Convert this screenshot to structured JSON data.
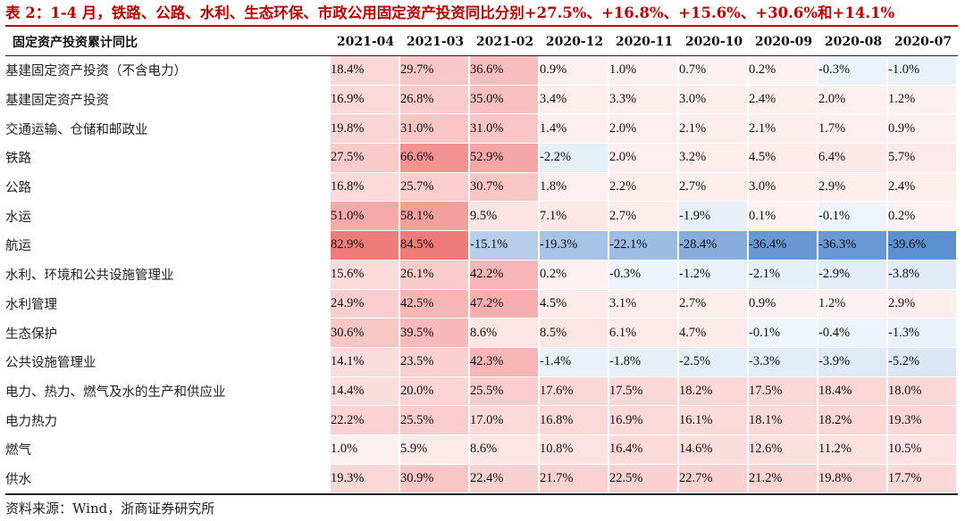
{
  "title": "表 2：1-4 月，铁路、公路、水利、生态环保、市政公用固定资产投资同比分别+27.5%、+16.8%、+15.6%、+30.6%和+14.1%",
  "table": {
    "header_label": "固定资产投资累计同比",
    "columns": [
      "2021-04",
      "2021-03",
      "2021-02",
      "2020-12",
      "2020-11",
      "2020-10",
      "2020-09",
      "2020-08",
      "2020-07"
    ],
    "rows": [
      {
        "label": "基建固定资产投资（不含电力）",
        "level": 0,
        "values": [
          "18.4%",
          "29.7%",
          "36.6%",
          "0.9%",
          "1.0%",
          "0.7%",
          "0.2%",
          "-0.3%",
          "-1.0%"
        ]
      },
      {
        "label": "基建固定资产投资",
        "level": 0,
        "values": [
          "16.9%",
          "26.8%",
          "35.0%",
          "3.4%",
          "3.3%",
          "3.0%",
          "2.4%",
          "2.0%",
          "1.2%"
        ]
      },
      {
        "label": "交通运输、仓储和邮政业",
        "level": 1,
        "values": [
          "19.8%",
          "31.0%",
          "31.0%",
          "1.4%",
          "2.0%",
          "2.1%",
          "2.1%",
          "1.7%",
          "0.9%"
        ]
      },
      {
        "label": "铁路",
        "level": 2,
        "values": [
          "27.5%",
          "66.6%",
          "52.9%",
          "-2.2%",
          "2.0%",
          "3.2%",
          "4.5%",
          "6.4%",
          "5.7%"
        ]
      },
      {
        "label": "公路",
        "level": 2,
        "values": [
          "16.8%",
          "25.7%",
          "30.7%",
          "1.8%",
          "2.2%",
          "2.7%",
          "3.0%",
          "2.9%",
          "2.4%"
        ]
      },
      {
        "label": "水运",
        "level": 2,
        "values": [
          "51.0%",
          "58.1%",
          "9.5%",
          "7.1%",
          "2.7%",
          "-1.9%",
          "0.1%",
          "-0.1%",
          "0.2%"
        ]
      },
      {
        "label": "航运",
        "level": 2,
        "values": [
          "82.9%",
          "84.5%",
          "-15.1%",
          "-19.3%",
          "-22.1%",
          "-28.4%",
          "-36.4%",
          "-36.3%",
          "-39.6%"
        ]
      },
      {
        "label": "水利、环境和公共设施管理业",
        "level": 1,
        "values": [
          "15.6%",
          "26.1%",
          "42.2%",
          "0.2%",
          "-0.3%",
          "-1.2%",
          "-2.1%",
          "-2.9%",
          "-3.8%"
        ]
      },
      {
        "label": "水利管理",
        "level": 2,
        "values": [
          "24.9%",
          "42.5%",
          "47.2%",
          "4.5%",
          "3.1%",
          "2.7%",
          "0.9%",
          "1.2%",
          "2.9%"
        ]
      },
      {
        "label": "生态保护",
        "level": 2,
        "values": [
          "30.6%",
          "39.5%",
          "8.6%",
          "8.5%",
          "6.1%",
          "4.7%",
          "-0.1%",
          "-0.4%",
          "-1.3%"
        ]
      },
      {
        "label": "公共设施管理业",
        "level": 2,
        "values": [
          "14.1%",
          "23.5%",
          "42.3%",
          "-1.4%",
          "-1.8%",
          "-2.5%",
          "-3.3%",
          "-3.9%",
          "-5.2%"
        ]
      },
      {
        "label": "电力、热力、燃气及水的生产和供应业",
        "level": 1,
        "values": [
          "14.4%",
          "20.0%",
          "25.5%",
          "17.6%",
          "17.5%",
          "18.2%",
          "17.5%",
          "18.4%",
          "18.0%"
        ]
      },
      {
        "label": "电力热力",
        "level": 2,
        "values": [
          "22.2%",
          "25.5%",
          "17.0%",
          "16.8%",
          "16.9%",
          "16.1%",
          "18.1%",
          "18.2%",
          "19.3%"
        ]
      },
      {
        "label": "燃气",
        "level": 2,
        "values": [
          "1.0%",
          "5.9%",
          "8.6%",
          "10.8%",
          "16.4%",
          "14.6%",
          "12.6%",
          "11.2%",
          "10.5%"
        ]
      },
      {
        "label": "供水",
        "level": 2,
        "values": [
          "19.3%",
          "30.9%",
          "22.4%",
          "21.7%",
          "22.5%",
          "22.7%",
          "21.2%",
          "19.8%",
          "17.7%"
        ]
      }
    ]
  },
  "source": "资料来源：Wind，浙商证券研究所",
  "colors": {
    "title": "#c00000",
    "heat_positive_max": "#f07878",
    "heat_negative_max": "#5b8fd0",
    "heat_neutral": "#ffffff"
  }
}
